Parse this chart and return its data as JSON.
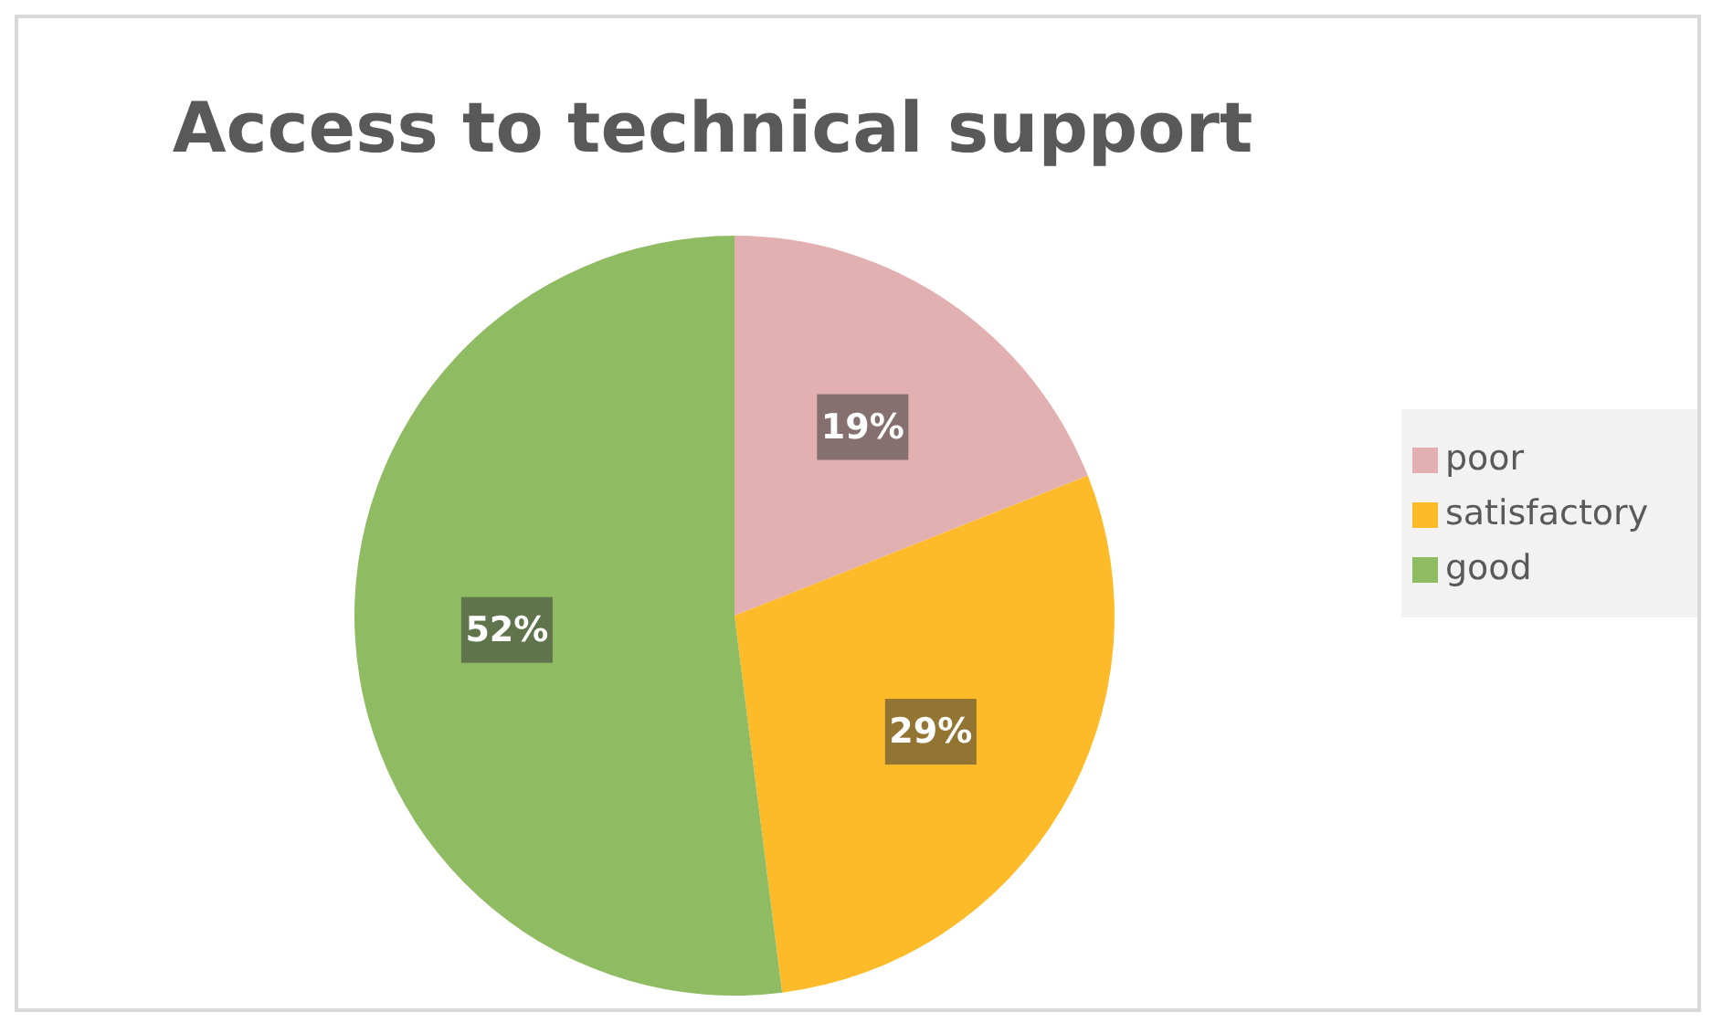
{
  "chart_data": {
    "type": "pie",
    "title": "Access to technical support",
    "categories": [
      "poor",
      "satisfactory",
      "good"
    ],
    "values": [
      19,
      29,
      52
    ],
    "colors": [
      "#e2b0b0",
      "#fdbb2a",
      "#8fbb62"
    ],
    "value_labels": [
      "19%",
      "29%",
      "52%"
    ],
    "legend": "right"
  }
}
